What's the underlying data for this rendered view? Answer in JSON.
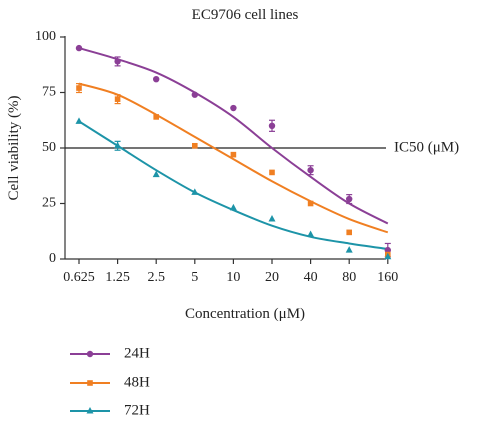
{
  "chart_data": {
    "type": "scatter",
    "title": "EC9706 cell lines",
    "xlabel": "Concentration (μM)",
    "ylabel": "Cell viability (%)",
    "x_scale": "log",
    "categories": [
      "0.625",
      "1.25",
      "2.5",
      "5",
      "10",
      "20",
      "40",
      "80",
      "160"
    ],
    "x": [
      0.625,
      1.25,
      2.5,
      5,
      10,
      20,
      40,
      80,
      160
    ],
    "y_ticks": [
      "0",
      "25",
      "50",
      "75",
      "100"
    ],
    "ylim": [
      0,
      100
    ],
    "grid": false,
    "legend_position": "bottom-left",
    "reference_line": {
      "label": "IC50 (μM)",
      "value": 50
    },
    "series": [
      {
        "name": "24H",
        "marker": "circle",
        "color": "#8b3f96",
        "values": [
          95,
          89,
          81,
          74,
          68,
          60,
          40,
          27,
          4
        ],
        "error": [
          0,
          2,
          0,
          0,
          0,
          2.5,
          2,
          2,
          3
        ],
        "fit": [
          95,
          90,
          84,
          75,
          64,
          50,
          37,
          25,
          16
        ]
      },
      {
        "name": "48H",
        "marker": "square",
        "color": "#f07f22",
        "values": [
          77,
          72,
          64,
          51,
          47,
          39,
          25,
          12,
          2
        ],
        "error": [
          2,
          2,
          0,
          0,
          0,
          0,
          0,
          0,
          0
        ],
        "fit": [
          79,
          74,
          65,
          55,
          45,
          35,
          26,
          18,
          12
        ]
      },
      {
        "name": "72H",
        "marker": "triangle",
        "color": "#1d94a8",
        "values": [
          62,
          51,
          38,
          30,
          23,
          18,
          11,
          4,
          1
        ],
        "error": [
          0,
          2,
          0,
          0,
          0,
          0,
          0,
          0,
          0
        ],
        "fit": [
          62,
          51,
          40,
          30,
          22,
          15,
          10,
          7,
          4.5
        ]
      }
    ]
  }
}
